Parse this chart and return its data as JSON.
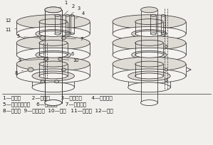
{
  "bg_color": "#f2f0ec",
  "line_color": "#333333",
  "legend_lines": [
    "1—中心轴       2—固定較       3—送料管道      4—送料气道",
    "5—容积式盛料器    6—连接管道     7—进气气孔",
    "8—旋转盘  9—连接气道  10—通孔   11—盛料盘  12—图罩"
  ],
  "legend_fontsize": 5.2,
  "lw": 0.55
}
